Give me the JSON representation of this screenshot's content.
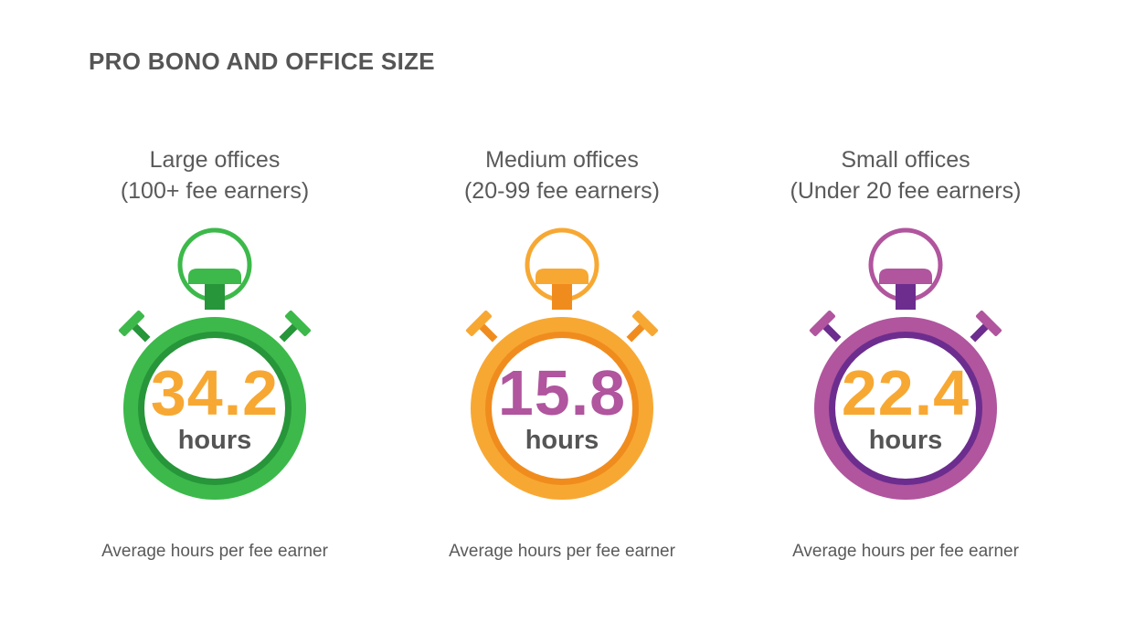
{
  "title": "PRO BONO AND OFFICE SIZE",
  "panels": [
    {
      "heading_line1": "Large offices",
      "heading_line2": "(100+ fee earners)",
      "value": "34.2",
      "unit": "hours",
      "caption": "Average hours per fee earner",
      "icon": "stopwatch-icon",
      "colors": {
        "ring": "#3cb94a",
        "ring_dark": "#27953a",
        "value": "#f7a833"
      }
    },
    {
      "heading_line1": "Medium offices",
      "heading_line2": "(20-99 fee earners)",
      "value": "15.8",
      "unit": "hours",
      "caption": "Average hours per fee earner",
      "icon": "stopwatch-icon",
      "colors": {
        "ring": "#f7a833",
        "ring_dark": "#f08c1e",
        "value": "#b0559e"
      }
    },
    {
      "heading_line1": "Small offices",
      "heading_line2": "(Under 20 fee earners)",
      "value": "22.4",
      "unit": "hours",
      "caption": "Average hours per fee earner",
      "icon": "stopwatch-icon",
      "colors": {
        "ring": "#b0559e",
        "ring_dark": "#6c2d8f",
        "value": "#f7a833"
      }
    }
  ]
}
